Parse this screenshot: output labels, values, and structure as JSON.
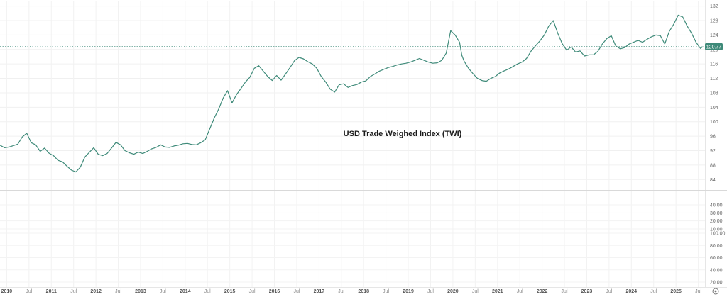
{
  "chart_data": {
    "type": "line",
    "title": "USD Trade Weighed Index (TWI)",
    "xlabel": "",
    "ylabel": "",
    "x_range": [
      2009.85,
      2025.65
    ],
    "ylim": [
      81.5,
      133.3
    ],
    "grid": true,
    "line_color": "#3e8a79",
    "last_value": "120.77",
    "y_ticks": [
      "132",
      "128",
      "124",
      "120",
      "116",
      "112",
      "108",
      "104",
      "100",
      "96",
      "92",
      "88",
      "84"
    ],
    "x_ticks": [
      {
        "x": 2010.0,
        "label": "2010",
        "kind": "year"
      },
      {
        "x": 2010.5,
        "label": "Jul",
        "kind": "month"
      },
      {
        "x": 2011.0,
        "label": "2011",
        "kind": "year"
      },
      {
        "x": 2011.5,
        "label": "Jul",
        "kind": "month"
      },
      {
        "x": 2012.0,
        "label": "2012",
        "kind": "year"
      },
      {
        "x": 2012.5,
        "label": "Jul",
        "kind": "month"
      },
      {
        "x": 2013.0,
        "label": "2013",
        "kind": "year"
      },
      {
        "x": 2013.5,
        "label": "Jul",
        "kind": "month"
      },
      {
        "x": 2014.0,
        "label": "2014",
        "kind": "year"
      },
      {
        "x": 2014.5,
        "label": "Jul",
        "kind": "month"
      },
      {
        "x": 2015.0,
        "label": "2015",
        "kind": "year"
      },
      {
        "x": 2015.5,
        "label": "Jul",
        "kind": "month"
      },
      {
        "x": 2016.0,
        "label": "2016",
        "kind": "year"
      },
      {
        "x": 2016.5,
        "label": "Jul",
        "kind": "month"
      },
      {
        "x": 2017.0,
        "label": "2017",
        "kind": "year"
      },
      {
        "x": 2017.5,
        "label": "Jul",
        "kind": "month"
      },
      {
        "x": 2018.0,
        "label": "2018",
        "kind": "year"
      },
      {
        "x": 2018.5,
        "label": "Jul",
        "kind": "month"
      },
      {
        "x": 2019.0,
        "label": "2019",
        "kind": "year"
      },
      {
        "x": 2019.5,
        "label": "Jul",
        "kind": "month"
      },
      {
        "x": 2020.0,
        "label": "2020",
        "kind": "year"
      },
      {
        "x": 2020.5,
        "label": "Jul",
        "kind": "month"
      },
      {
        "x": 2021.0,
        "label": "2021",
        "kind": "year"
      },
      {
        "x": 2021.5,
        "label": "Jul",
        "kind": "month"
      },
      {
        "x": 2022.0,
        "label": "2022",
        "kind": "year"
      },
      {
        "x": 2022.5,
        "label": "Jul",
        "kind": "month"
      },
      {
        "x": 2023.0,
        "label": "2023",
        "kind": "year"
      },
      {
        "x": 2023.5,
        "label": "Jul",
        "kind": "month"
      },
      {
        "x": 2024.0,
        "label": "2024",
        "kind": "year"
      },
      {
        "x": 2024.5,
        "label": "Jul",
        "kind": "month"
      },
      {
        "x": 2025.0,
        "label": "2025",
        "kind": "year"
      },
      {
        "x": 2025.5,
        "label": "Jul",
        "kind": "month"
      }
    ],
    "series": [
      {
        "x": [
          2009.85,
          2009.95,
          2010.05,
          2010.15,
          2010.25,
          2010.35,
          2010.45,
          2010.55,
          2010.65,
          2010.75,
          2010.85,
          2010.95,
          2011.05,
          2011.15,
          2011.25,
          2011.35,
          2011.45,
          2011.55,
          2011.65,
          2011.75,
          2011.85,
          2011.95,
          2012.05,
          2012.15,
          2012.25,
          2012.35,
          2012.45,
          2012.55,
          2012.65,
          2012.75,
          2012.85,
          2012.95,
          2013.05,
          2013.15,
          2013.25,
          2013.35,
          2013.45,
          2013.55,
          2013.65,
          2013.75,
          2013.85,
          2013.95,
          2014.05,
          2014.15,
          2014.25,
          2014.35,
          2014.45,
          2014.55,
          2014.65,
          2014.75,
          2014.85,
          2014.95,
          2015.05,
          2015.15,
          2015.25,
          2015.35,
          2015.45,
          2015.55,
          2015.65,
          2015.75,
          2015.85,
          2015.95,
          2016.05,
          2016.15,
          2016.25,
          2016.35,
          2016.45,
          2016.55,
          2016.65,
          2016.75,
          2016.85,
          2016.95,
          2017.05,
          2017.15,
          2017.25,
          2017.35,
          2017.45,
          2017.55,
          2017.65,
          2017.75,
          2017.85,
          2017.95,
          2018.05,
          2018.15,
          2018.25,
          2018.35,
          2018.45,
          2018.55,
          2018.65,
          2018.75,
          2018.85,
          2018.95,
          2019.05,
          2019.15,
          2019.25,
          2019.35,
          2019.45,
          2019.55,
          2019.65,
          2019.75,
          2019.85,
          2019.95,
          2020.05,
          2020.15,
          2020.2,
          2020.25,
          2020.35,
          2020.45,
          2020.55,
          2020.65,
          2020.75,
          2020.85,
          2020.95,
          2021.05,
          2021.15,
          2021.25,
          2021.35,
          2021.45,
          2021.55,
          2021.65,
          2021.75,
          2021.85,
          2021.95,
          2022.05,
          2022.15,
          2022.25,
          2022.35,
          2022.45,
          2022.55,
          2022.65,
          2022.75,
          2022.85,
          2022.95,
          2023.05,
          2023.15,
          2023.25,
          2023.35,
          2023.45,
          2023.55,
          2023.65,
          2023.75,
          2023.85,
          2023.95,
          2024.05,
          2024.15,
          2024.25,
          2024.35,
          2024.45,
          2024.55,
          2024.65,
          2024.75,
          2024.85,
          2024.95,
          2025.05,
          2025.15,
          2025.25,
          2025.35,
          2025.45,
          2025.55,
          2025.6
        ],
        "values": [
          93.5,
          92.8,
          93.0,
          93.4,
          93.8,
          95.8,
          96.8,
          94.2,
          93.6,
          91.8,
          92.7,
          91.3,
          90.6,
          89.3,
          88.9,
          87.7,
          86.6,
          86.1,
          87.4,
          90.2,
          91.5,
          92.8,
          91.0,
          90.6,
          91.2,
          92.7,
          94.3,
          93.6,
          92.0,
          91.4,
          91.0,
          91.6,
          91.2,
          91.8,
          92.5,
          92.9,
          93.6,
          93.0,
          92.9,
          93.3,
          93.5,
          93.9,
          94.0,
          93.7,
          93.6,
          94.2,
          95.0,
          98.0,
          101.0,
          103.5,
          106.5,
          108.6,
          105.2,
          107.5,
          109.2,
          111.0,
          112.3,
          114.8,
          115.5,
          114.0,
          112.5,
          111.4,
          112.8,
          111.5,
          113.2,
          115.0,
          116.9,
          117.8,
          117.4,
          116.6,
          116.0,
          114.8,
          112.5,
          111.0,
          109.0,
          108.2,
          110.2,
          110.5,
          109.5,
          110.0,
          110.3,
          111.0,
          111.3,
          112.5,
          113.2,
          114.0,
          114.5,
          115.0,
          115.3,
          115.7,
          116.0,
          116.2,
          116.5,
          117.0,
          117.5,
          117.0,
          116.5,
          116.2,
          116.3,
          117.0,
          119.0,
          125.2,
          124.0,
          122.0,
          118.4,
          116.8,
          114.8,
          113.3,
          112.0,
          111.4,
          111.2,
          112.0,
          112.5,
          113.5,
          114.1,
          114.6,
          115.3,
          116.0,
          116.5,
          117.5,
          119.5,
          121.0,
          122.4,
          124.0,
          126.5,
          128.0,
          124.5,
          121.6,
          119.8,
          120.7,
          119.3,
          119.6,
          118.2,
          118.5,
          118.5,
          119.5,
          121.5,
          123.0,
          123.8,
          121.0,
          120.2,
          120.5,
          121.5,
          122.0,
          122.5,
          122.0,
          122.8,
          123.5,
          124.0,
          123.8,
          121.5,
          125.0,
          127.0,
          129.5,
          129.0,
          126.5,
          124.5,
          122.0,
          120.3,
          120.77
        ]
      }
    ],
    "lower_panels": [
      {
        "ticks": [
          "40.00",
          "30.00",
          "20.00",
          "10.00"
        ]
      },
      {
        "ticks": [
          "100.00",
          "80.00",
          "60.00",
          "40.00",
          "20.00"
        ]
      }
    ]
  }
}
